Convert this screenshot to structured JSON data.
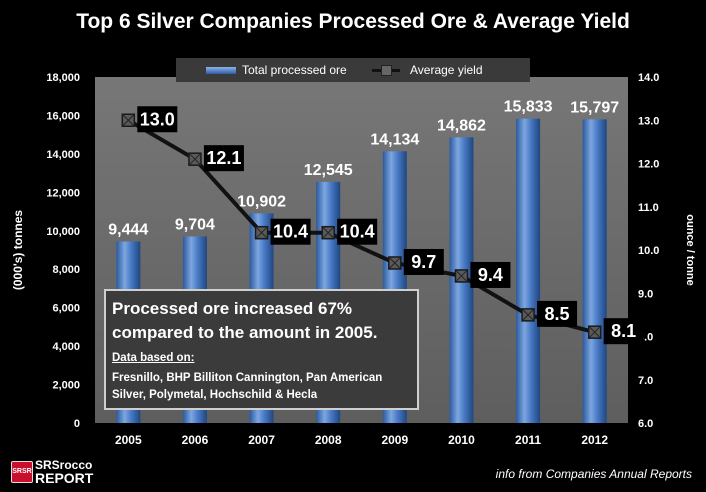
{
  "chart_data": {
    "type": "bar+line",
    "title": "Top 6 Silver Companies Processed Ore & Average Yield",
    "categories": [
      "2005",
      "2006",
      "2007",
      "2008",
      "2009",
      "2010",
      "2011",
      "2012"
    ],
    "series": [
      {
        "name": "Total processed ore",
        "type": "bar",
        "axis": "left",
        "values": [
          9444,
          9704,
          10902,
          12545,
          14134,
          14862,
          15833,
          15797
        ],
        "labels": [
          "9,444",
          "9,704",
          "10,902",
          "12,545",
          "14,134",
          "14,862",
          "15,833",
          "15,797"
        ],
        "color": "#3f72c0"
      },
      {
        "name": "Average yield",
        "type": "line",
        "axis": "right",
        "values": [
          13.0,
          12.1,
          10.4,
          10.4,
          9.7,
          9.4,
          8.5,
          8.1
        ],
        "labels": [
          "13.0",
          "12.1",
          "10.4",
          "10.4",
          "9.7",
          "9.4",
          "8.5",
          "8.1"
        ],
        "color": "#111111"
      }
    ],
    "y_left": {
      "label": "(000's)  tonnes",
      "range": [
        0,
        18000
      ],
      "ticks": [
        "0",
        "2,000",
        "4,000",
        "6,000",
        "8,000",
        "10,000",
        "12,000",
        "14,000",
        "16,000",
        "18,000"
      ]
    },
    "y_right": {
      "label": "ounce / tonne",
      "range": [
        6.0,
        14.0
      ],
      "ticks": [
        "6.0",
        "7.0",
        "8.0",
        "9.0",
        "10.0",
        "11.0",
        "12.0",
        "13.0",
        "14.0"
      ]
    },
    "grid": false,
    "legend": "top-center",
    "background": "#000000",
    "plot_background": "#6e6e6e"
  },
  "annotation": {
    "headline": "Processed ore increased 67% compared to the amount in 2005.",
    "subheading": "Data based on:",
    "detail": "Fresnillo, BHP Billiton Cannington, Pan American Silver, Polymetal, Hochschild & Hecla"
  },
  "credit": "info from Companies Annual Reports",
  "logo": {
    "line1": "SRSrocco",
    "line2": "REPORT",
    "mark": "SRSR"
  }
}
